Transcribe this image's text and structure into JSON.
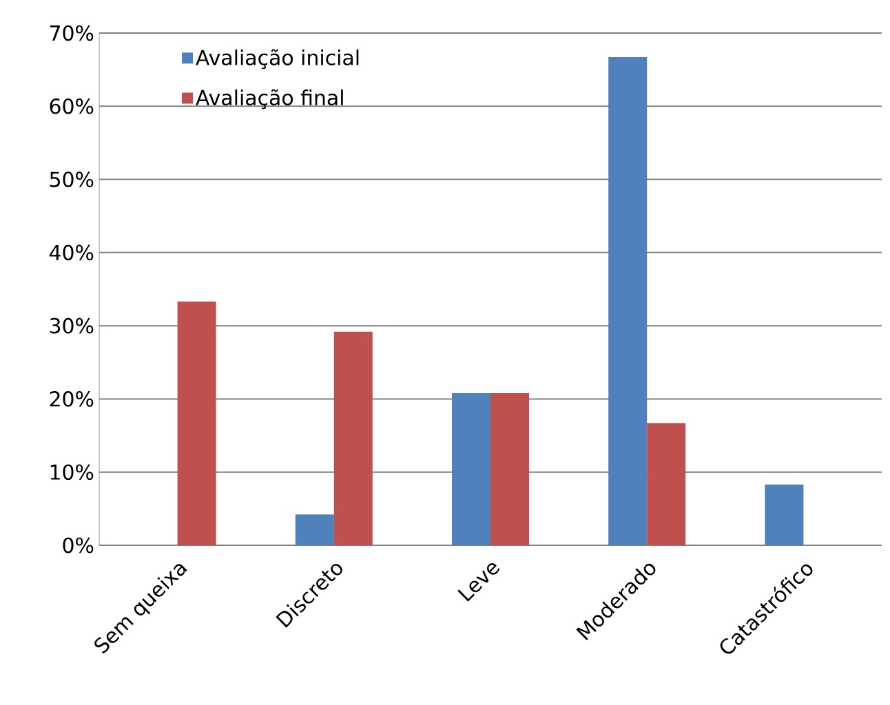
{
  "chart_data": {
    "type": "bar",
    "categories": [
      "Sem queixa",
      "Discreto",
      "Leve",
      "Moderado",
      "Catastrófico"
    ],
    "series": [
      {
        "name": "Avaliação inicial",
        "color": "#4f81bd",
        "values": [
          0,
          4.2,
          20.8,
          66.7,
          8.3
        ]
      },
      {
        "name": "Avaliação final",
        "color": "#c0504d",
        "values": [
          33.3,
          29.2,
          20.8,
          16.7,
          0
        ]
      }
    ],
    "ylim": [
      0,
      70
    ],
    "yticks": [
      {
        "value": 0,
        "label": "0%"
      },
      {
        "value": 10,
        "label": "10%"
      },
      {
        "value": 20,
        "label": "20%"
      },
      {
        "value": 30,
        "label": "30%"
      },
      {
        "value": 40,
        "label": "40%"
      },
      {
        "value": 50,
        "label": "50%"
      },
      {
        "value": 60,
        "label": "60%"
      },
      {
        "value": 70,
        "label": "70%"
      }
    ],
    "grid": "y",
    "legend": "top left"
  }
}
